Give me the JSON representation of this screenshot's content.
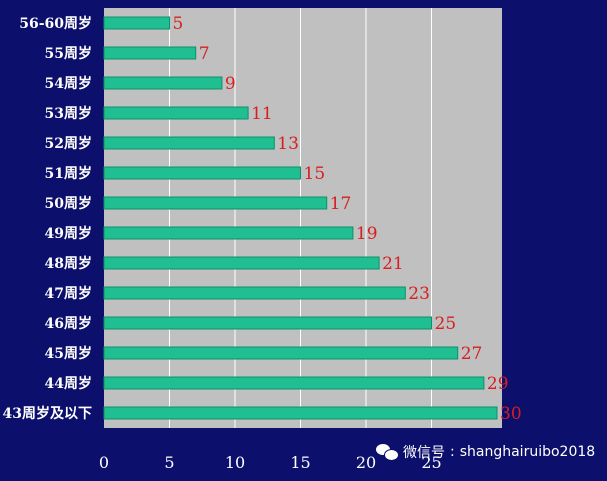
{
  "chart_data": {
    "type": "bar",
    "orientation": "horizontal",
    "categories": [
      "56-60周岁",
      "55周岁",
      "54周岁",
      "53周岁",
      "52周岁",
      "51周岁",
      "50周岁",
      "49周岁",
      "48周岁",
      "47周岁",
      "46周岁",
      "45周岁",
      "44周岁",
      "43周岁及以下"
    ],
    "values": [
      5,
      7,
      9,
      11,
      13,
      15,
      17,
      19,
      21,
      23,
      25,
      27,
      29,
      30
    ],
    "xlim": [
      0,
      30
    ],
    "xticks": [
      0,
      5,
      10,
      15,
      20,
      25
    ],
    "grid": true,
    "colors": {
      "bar": "#1fbf92",
      "bar_edge": "#0f8f6a",
      "plot_bg": "#c0c0c0",
      "page_bg": "#0c0f6b",
      "value_label": "#d81e1e",
      "grid": "#ffffff"
    }
  },
  "watermark": {
    "icon": "wechat-icon",
    "label": "微信号",
    "separator": ":",
    "account": "shanghairuibo2018"
  }
}
